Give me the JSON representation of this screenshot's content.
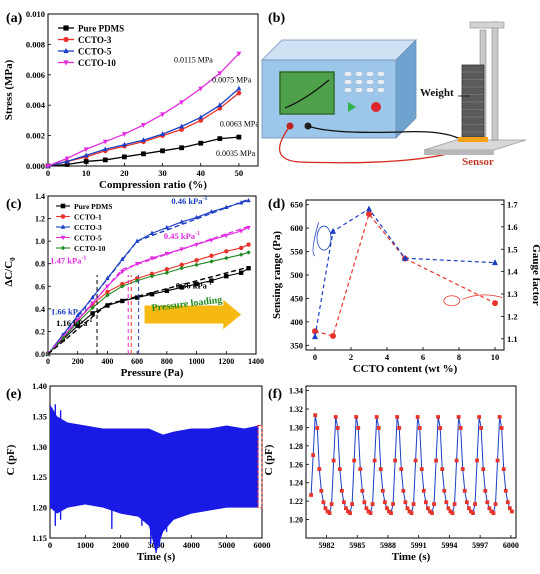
{
  "colors": {
    "black": "#000000",
    "red": "#e8332a",
    "blue": "#1c3fc4",
    "magenta": "#e12ce0",
    "green": "#1f8a1f",
    "gold": "#f6b912",
    "instrument_body": "#7fb2de",
    "instrument_front": "#9cc7ea",
    "screen": "#4ea04a",
    "gray": "#9a9a9a",
    "cap_blue": "#1a1ae6"
  },
  "chart_data": [
    {
      "panel": "(a)",
      "type": "line",
      "xlabel": "Compression ratio (%)",
      "ylabel": "Stress (MPa)",
      "xlim": [
        0,
        55
      ],
      "ylim": [
        0,
        0.01
      ],
      "xticks": [
        "0",
        "10",
        "20",
        "30",
        "40",
        "50"
      ],
      "yticks": [
        "0.000",
        "0.002",
        "0.004",
        "0.006",
        "0.008",
        "0.010"
      ],
      "legend_position": "top-left",
      "series": [
        {
          "name": "Pure PDMS",
          "color_key": "black",
          "marker": "square",
          "x": [
            0,
            5,
            10,
            15,
            20,
            25,
            30,
            35,
            40,
            45,
            50
          ],
          "y": [
            0,
            0.0001,
            0.0003,
            0.0004,
            0.0006,
            0.0008,
            0.001,
            0.0012,
            0.0015,
            0.0018,
            0.0019
          ]
        },
        {
          "name": "CCTO-3",
          "color_key": "red",
          "marker": "circle",
          "x": [
            0,
            5,
            10,
            15,
            20,
            25,
            30,
            35,
            40,
            45,
            50
          ],
          "y": [
            0,
            0.0003,
            0.0006,
            0.001,
            0.0013,
            0.0016,
            0.002,
            0.0024,
            0.003,
            0.0038,
            0.0048
          ]
        },
        {
          "name": "CCTO-5",
          "color_key": "blue",
          "marker": "triangle",
          "x": [
            0,
            5,
            10,
            15,
            20,
            25,
            30,
            35,
            40,
            45,
            50
          ],
          "y": [
            0,
            0.0003,
            0.0007,
            0.0011,
            0.0014,
            0.0017,
            0.0021,
            0.0026,
            0.0032,
            0.004,
            0.0051
          ]
        },
        {
          "name": "CCTO-10",
          "color_key": "magenta",
          "marker": "triangle-down",
          "x": [
            0,
            5,
            10,
            15,
            20,
            25,
            30,
            35,
            40,
            45,
            50
          ],
          "y": [
            0,
            0.0005,
            0.0011,
            0.0016,
            0.0021,
            0.0027,
            0.0034,
            0.0042,
            0.0051,
            0.0061,
            0.0074
          ]
        }
      ],
      "annotations": [
        {
          "text": "0.0115 MPa",
          "x": 33,
          "y": 0.0068
        },
        {
          "text": "0.0075 MPa",
          "x": 43,
          "y": 0.0055
        },
        {
          "text": "0.0063 MPa",
          "x": 45,
          "y": 0.0026
        },
        {
          "text": "0.0035 MPa",
          "x": 44,
          "y": 0.00065
        }
      ]
    },
    {
      "panel": "(b)",
      "type": "diagram",
      "labels": {
        "weight": "Weight",
        "sensor": "Sensor"
      }
    },
    {
      "panel": "(c)",
      "type": "line",
      "xlabel": "Pressure (Pa)",
      "ylabel": "ΔC/C",
      "ylabel_sub": "0",
      "xlim": [
        0,
        1400
      ],
      "ylim": [
        0,
        1.4
      ],
      "xticks": [
        "0",
        "200",
        "400",
        "600",
        "800",
        "1000",
        "1200",
        "1400"
      ],
      "yticks": [
        "0.0",
        "0.2",
        "0.4",
        "0.6",
        "0.8",
        "1.0",
        "1.2",
        "1.4"
      ],
      "legend_position": "top-left",
      "series": [
        {
          "name": "Pure PDMS",
          "color_key": "black",
          "marker": "square",
          "x": [
            0,
            100,
            200,
            300,
            400,
            500,
            600,
            700,
            800,
            900,
            1000,
            1100,
            1200,
            1300,
            1350
          ],
          "y": [
            0,
            0.13,
            0.25,
            0.36,
            0.43,
            0.47,
            0.5,
            0.53,
            0.56,
            0.59,
            0.62,
            0.65,
            0.69,
            0.72,
            0.76
          ]
        },
        {
          "name": "CCTO-1",
          "color_key": "red",
          "marker": "circle",
          "x": [
            0,
            100,
            200,
            300,
            400,
            500,
            600,
            700,
            800,
            900,
            1000,
            1100,
            1200,
            1300,
            1350
          ],
          "y": [
            0,
            0.15,
            0.3,
            0.44,
            0.55,
            0.62,
            0.67,
            0.71,
            0.75,
            0.79,
            0.83,
            0.87,
            0.91,
            0.94,
            0.97
          ]
        },
        {
          "name": "CCTO-3",
          "color_key": "blue",
          "marker": "triangle",
          "x": [
            0,
            100,
            200,
            300,
            400,
            500,
            600,
            700,
            800,
            900,
            1000,
            1100,
            1200,
            1300,
            1350
          ],
          "y": [
            0,
            0.17,
            0.34,
            0.5,
            0.67,
            0.84,
            1.0,
            1.07,
            1.12,
            1.17,
            1.21,
            1.26,
            1.3,
            1.34,
            1.36
          ]
        },
        {
          "name": "CCTO-5",
          "color_key": "magenta",
          "marker": "triangle-down",
          "x": [
            0,
            100,
            200,
            300,
            400,
            500,
            600,
            700,
            800,
            900,
            1000,
            1100,
            1200,
            1300,
            1350
          ],
          "y": [
            0,
            0.15,
            0.3,
            0.45,
            0.6,
            0.73,
            0.8,
            0.85,
            0.89,
            0.93,
            0.97,
            1.01,
            1.05,
            1.09,
            1.12
          ]
        },
        {
          "name": "CCTO-10",
          "color_key": "green",
          "marker": "diamond",
          "x": [
            0,
            100,
            200,
            300,
            400,
            500,
            600,
            700,
            800,
            900,
            1000,
            1100,
            1200,
            1300,
            1350
          ],
          "y": [
            0,
            0.14,
            0.28,
            0.41,
            0.52,
            0.6,
            0.65,
            0.69,
            0.72,
            0.76,
            0.79,
            0.82,
            0.85,
            0.88,
            0.9
          ]
        }
      ],
      "annotations": [
        {
          "text": "0.46 kPa",
          "sup": "-1",
          "color_key": "blue",
          "x": 830,
          "y": 1.33
        },
        {
          "text": "0.45 kPa",
          "sup": "-1",
          "color_key": "magenta",
          "x": 780,
          "y": 1.02
        },
        {
          "text": "0.36 kPa",
          "sup": "-1",
          "color_key": "black",
          "x": 860,
          "y": 0.58
        },
        {
          "text": "1.47 kPa",
          "sup": "-1",
          "color_key": "magenta",
          "x": 15,
          "y": 0.8
        },
        {
          "text": "1.66 kPa",
          "sup": "-1",
          "color_key": "blue",
          "x": 20,
          "y": 0.35
        },
        {
          "text": "1.16 kPa",
          "sup": "-1",
          "color_key": "black",
          "x": 55,
          "y": 0.25
        }
      ],
      "arrow_label": "Pressure loading"
    },
    {
      "panel": "(d)",
      "type": "line",
      "xlabel": "CCTO content (wt %)",
      "ylabel": "Sensing range (Pa)",
      "y2label": "Gauge factor",
      "xlim": [
        -0.5,
        10.5
      ],
      "ylim": [
        340,
        660
      ],
      "y2lim": [
        1.05,
        1.72
      ],
      "xticks": [
        "0",
        "2",
        "4",
        "6",
        "8",
        "10"
      ],
      "yticks": [
        "350",
        "400",
        "450",
        "500",
        "550",
        "600",
        "650"
      ],
      "y2ticks": [
        "1.1",
        "1.2",
        "1.3",
        "1.4",
        "1.5",
        "1.6",
        "1.7"
      ],
      "series": [
        {
          "name": "",
          "color_key": "red",
          "marker": "circle",
          "axis": "left",
          "x": [
            0,
            1,
            3,
            5,
            10
          ],
          "y": [
            380,
            370,
            630,
            535,
            440
          ]
        },
        {
          "name": "",
          "color_key": "blue",
          "marker": "triangle",
          "axis": "right",
          "x": [
            0,
            1,
            3,
            5,
            10
          ],
          "y": [
            1.11,
            1.58,
            1.68,
            1.46,
            1.44
          ]
        }
      ]
    },
    {
      "panel": "(e)",
      "type": "area",
      "xlabel": "Time (s)",
      "ylabel": "C (pF)",
      "xlim": [
        0,
        6000
      ],
      "ylim": [
        1.15,
        1.4
      ],
      "xticks": [
        "0",
        "1000",
        "2000",
        "3000",
        "4000",
        "5000",
        "6000"
      ],
      "yticks": [
        "1.15",
        "1.20",
        "1.25",
        "1.30",
        "1.35",
        "1.40"
      ],
      "series": [
        {
          "name": "",
          "color_key": "cap_blue",
          "x": [
            0,
            200,
            500,
            1000,
            1500,
            2000,
            2500,
            2800,
            3000,
            3200,
            3500,
            4000,
            4500,
            5000,
            5500,
            5900
          ],
          "upper": [
            1.37,
            1.35,
            1.34,
            1.335,
            1.33,
            1.33,
            1.33,
            1.33,
            1.325,
            1.32,
            1.325,
            1.33,
            1.33,
            1.335,
            1.33,
            1.335
          ],
          "lower": [
            1.2,
            1.19,
            1.2,
            1.205,
            1.2,
            1.19,
            1.185,
            1.17,
            1.125,
            1.16,
            1.18,
            1.19,
            1.195,
            1.2,
            1.2,
            1.2
          ]
        }
      ],
      "highlight_region": [
        5980,
        6000
      ]
    },
    {
      "panel": "(f)",
      "type": "line",
      "xlabel": "Time (s)",
      "ylabel": "C (pF)",
      "xlim": [
        5980,
        6000.5
      ],
      "ylim": [
        1.18,
        1.345
      ],
      "xticks": [
        "5982",
        "5985",
        "5988",
        "5991",
        "5994",
        "5997",
        "6000"
      ],
      "yticks": [
        "1.20",
        "1.22",
        "1.24",
        "1.26",
        "1.28",
        "1.30",
        "1.32",
        "1.34"
      ],
      "series": [
        {
          "name": "",
          "color_key": "red",
          "marker": "square",
          "line_color_key": "blue",
          "cycle_period_s": 2,
          "peak_times": [
            5981,
            5983,
            5985,
            5987,
            5989,
            5991,
            5993,
            5995,
            5997,
            5999
          ],
          "peak": 1.335,
          "trough": 1.205
        }
      ]
    }
  ]
}
